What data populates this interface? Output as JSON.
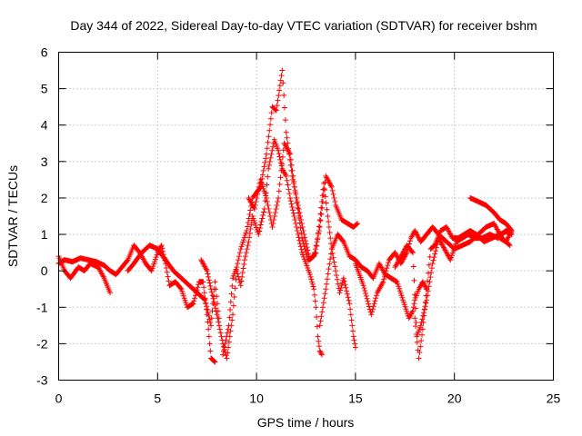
{
  "chart_data": {
    "type": "scatter",
    "title": "Day 344 of 2022, Sidereal Day-to-day VTEC variation (SDTVAR) for receiver bshm",
    "xlabel": "GPS time / hours",
    "ylabel": "SDTVAR / TECUs",
    "xlim": [
      0,
      25
    ],
    "ylim": [
      -3,
      6
    ],
    "xticks": [
      "0",
      "5",
      "10",
      "15",
      "20",
      "25"
    ],
    "yticks": [
      "-3",
      "-2",
      "-1",
      "0",
      "1",
      "2",
      "3",
      "4",
      "5",
      "6"
    ],
    "grid": true,
    "marker": "+",
    "series": [
      {
        "name": "SDTVAR",
        "color": "#ff0000",
        "segments": [
          [
            [
              0.0,
              0.4
            ],
            [
              0.3,
              0.0
            ],
            [
              0.6,
              -0.2
            ],
            [
              1.0,
              0.1
            ],
            [
              1.3,
              0.0
            ],
            [
              1.6,
              0.2
            ],
            [
              2.0,
              0.1
            ],
            [
              2.3,
              -0.2
            ],
            [
              2.6,
              -0.6
            ]
          ],
          [
            [
              0.0,
              0.2
            ],
            [
              0.3,
              0.3
            ],
            [
              0.7,
              0.25
            ],
            [
              1.1,
              0.35
            ],
            [
              1.5,
              0.3
            ],
            [
              1.9,
              0.25
            ],
            [
              2.3,
              0.15
            ],
            [
              2.6,
              0.0
            ],
            [
              2.9,
              -0.1
            ],
            [
              3.2,
              0.1
            ],
            [
              3.5,
              0.3
            ],
            [
              3.8,
              0.7
            ],
            [
              4.1,
              0.5
            ],
            [
              4.4,
              0.2
            ],
            [
              4.7,
              0.0
            ],
            [
              5.0,
              0.5
            ],
            [
              5.2,
              0.7
            ],
            [
              5.4,
              0.2
            ],
            [
              5.6,
              -0.4
            ],
            [
              5.9,
              -0.3
            ],
            [
              6.2,
              -0.5
            ],
            [
              6.5,
              -1.0
            ],
            [
              6.8,
              -0.9
            ],
            [
              7.1,
              -0.3
            ],
            [
              7.3,
              -0.3
            ],
            [
              7.5,
              -1.2
            ],
            [
              7.7,
              -2.4
            ],
            [
              7.9,
              -2.5
            ]
          ],
          [
            [
              3.5,
              0.0
            ],
            [
              3.8,
              0.2
            ],
            [
              4.2,
              0.5
            ],
            [
              4.6,
              0.7
            ],
            [
              5.0,
              0.6
            ],
            [
              5.4,
              0.3
            ],
            [
              5.8,
              0.0
            ],
            [
              6.2,
              -0.2
            ],
            [
              6.6,
              -0.4
            ],
            [
              7.0,
              -0.6
            ],
            [
              7.4,
              -0.8
            ],
            [
              7.7,
              -1.5
            ],
            [
              7.9,
              -0.3
            ],
            [
              8.1,
              -1.3
            ]
          ],
          [
            [
              7.2,
              0.3
            ],
            [
              7.5,
              0.0
            ],
            [
              7.7,
              -0.5
            ],
            [
              8.0,
              -1.2
            ],
            [
              8.3,
              -2.0
            ],
            [
              8.5,
              -2.4
            ],
            [
              8.8,
              -1.2
            ],
            [
              9.0,
              0.0
            ],
            [
              9.2,
              -0.4
            ],
            [
              9.4,
              0.3
            ],
            [
              9.6,
              0.8
            ],
            [
              9.8,
              1.5
            ],
            [
              10.1,
              1.0
            ],
            [
              10.4,
              1.7
            ],
            [
              10.6,
              2.8
            ],
            [
              10.9,
              3.6
            ],
            [
              11.1,
              3.3
            ],
            [
              11.3,
              2.8
            ],
            [
              11.5,
              2.6
            ],
            [
              11.7,
              2.0
            ],
            [
              11.9,
              1.5
            ],
            [
              12.1,
              1.0
            ],
            [
              12.3,
              0.5
            ],
            [
              12.5,
              0.2
            ],
            [
              12.7,
              -0.1
            ],
            [
              12.9,
              -0.5
            ],
            [
              13.0,
              -1.0
            ],
            [
              13.1,
              -1.8
            ],
            [
              13.2,
              -2.2
            ],
            [
              13.3,
              -2.3
            ]
          ],
          [
            [
              8.3,
              -2.3
            ],
            [
              8.6,
              -1.5
            ],
            [
              8.8,
              -0.2
            ],
            [
              9.0,
              0.1
            ],
            [
              9.2,
              0.6
            ],
            [
              9.5,
              1.1
            ],
            [
              9.8,
              2.0
            ],
            [
              10.2,
              2.3
            ],
            [
              10.5,
              3.2
            ],
            [
              10.8,
              4.5
            ],
            [
              11.0,
              4.4
            ],
            [
              11.3,
              5.5
            ],
            [
              11.5,
              3.8
            ],
            [
              11.8,
              2.6
            ],
            [
              12.1,
              1.8
            ],
            [
              12.4,
              1.0
            ],
            [
              12.7,
              0.3
            ],
            [
              13.0,
              0.5
            ],
            [
              13.2,
              1.4
            ],
            [
              13.4,
              2.4
            ],
            [
              13.6,
              1.5
            ],
            [
              13.8,
              0.6
            ],
            [
              14.0,
              0.0
            ],
            [
              14.2,
              -0.6
            ],
            [
              14.4,
              -0.2
            ],
            [
              14.7,
              -0.9
            ],
            [
              14.9,
              -1.8
            ],
            [
              15.0,
              -2.1
            ]
          ],
          [
            [
              9.6,
              2.0
            ],
            [
              9.9,
              1.7
            ],
            [
              10.2,
              2.5
            ],
            [
              10.5,
              2.0
            ],
            [
              10.8,
              1.2
            ],
            [
              11.1,
              2.0
            ],
            [
              11.4,
              3.5
            ],
            [
              11.7,
              3.2
            ],
            [
              12.0,
              2.0
            ],
            [
              12.3,
              0.9
            ],
            [
              12.6,
              0.3
            ],
            [
              12.9,
              0.4
            ],
            [
              13.2,
              1.2
            ],
            [
              13.5,
              2.6
            ],
            [
              13.8,
              2.3
            ],
            [
              14.0,
              1.8
            ],
            [
              14.3,
              1.4
            ],
            [
              14.6,
              1.3
            ],
            [
              14.9,
              1.2
            ],
            [
              15.1,
              1.3
            ]
          ],
          [
            [
              13.2,
              -1.5
            ],
            [
              13.5,
              -0.5
            ],
            [
              13.8,
              0.6
            ],
            [
              14.1,
              1.0
            ],
            [
              14.4,
              0.8
            ],
            [
              14.7,
              0.4
            ],
            [
              15.0,
              0.3
            ],
            [
              15.3,
              0.1
            ],
            [
              15.6,
              0.0
            ],
            [
              15.9,
              -0.2
            ],
            [
              16.2,
              0.2
            ],
            [
              16.5,
              -0.1
            ],
            [
              16.8,
              -0.2
            ],
            [
              17.1,
              -0.3
            ],
            [
              17.4,
              -0.8
            ],
            [
              17.7,
              -1.3
            ],
            [
              17.9,
              -1.1
            ],
            [
              18.0,
              -0.8
            ],
            [
              18.2,
              -0.5
            ],
            [
              18.4,
              -0.3
            ],
            [
              18.6,
              -0.5
            ]
          ],
          [
            [
              15.0,
              0.2
            ],
            [
              15.4,
              -0.4
            ],
            [
              15.8,
              -1.2
            ],
            [
              16.1,
              -0.6
            ],
            [
              16.4,
              -0.3
            ],
            [
              16.7,
              0.3
            ],
            [
              17.0,
              0.5
            ],
            [
              17.3,
              0.2
            ],
            [
              17.6,
              0.5
            ],
            [
              17.8,
              0.9
            ],
            [
              18.0,
              1.1
            ],
            [
              18.3,
              0.8
            ],
            [
              18.6,
              1.0
            ],
            [
              18.9,
              1.2
            ],
            [
              19.2,
              1.0
            ],
            [
              19.6,
              0.8
            ],
            [
              20.0,
              0.6
            ],
            [
              20.4,
              0.7
            ],
            [
              20.8,
              0.8
            ],
            [
              21.2,
              1.0
            ],
            [
              21.6,
              1.2
            ],
            [
              22.0,
              1.3
            ],
            [
              22.4,
              0.9
            ],
            [
              22.8,
              0.7
            ]
          ],
          [
            [
              17.0,
              0.1
            ],
            [
              17.3,
              0.4
            ],
            [
              17.6,
              0.7
            ],
            [
              17.9,
              0.5
            ],
            [
              18.1,
              -1.8
            ],
            [
              18.3,
              -1.5
            ],
            [
              18.6,
              -0.8
            ],
            [
              18.9,
              0.2
            ],
            [
              19.2,
              0.9
            ],
            [
              19.5,
              0.6
            ],
            [
              19.8,
              0.3
            ],
            [
              20.1,
              0.8
            ],
            [
              20.4,
              0.9
            ],
            [
              20.7,
              1.0
            ],
            [
              21.0,
              0.9
            ],
            [
              21.4,
              0.9
            ],
            [
              21.8,
              1.0
            ],
            [
              22.2,
              0.9
            ],
            [
              22.6,
              1.1
            ],
            [
              22.9,
              1.0
            ]
          ],
          [
            [
              18.0,
              -1.3
            ],
            [
              18.2,
              -2.4
            ],
            [
              18.4,
              -1.6
            ],
            [
              18.6,
              -0.5
            ],
            [
              18.8,
              0.6
            ],
            [
              19.0,
              0.7
            ],
            [
              19.3,
              1.1
            ],
            [
              19.6,
              1.2
            ],
            [
              19.9,
              0.9
            ],
            [
              20.2,
              0.9
            ],
            [
              20.5,
              1.0
            ],
            [
              20.8,
              1.1
            ],
            [
              21.1,
              1.0
            ],
            [
              21.5,
              0.8
            ],
            [
              21.9,
              0.9
            ],
            [
              22.3,
              1.0
            ],
            [
              22.7,
              1.1
            ]
          ],
          [
            [
              20.8,
              2.0
            ],
            [
              21.2,
              1.9
            ],
            [
              21.6,
              1.8
            ],
            [
              22.0,
              1.6
            ],
            [
              22.3,
              1.4
            ],
            [
              22.6,
              1.3
            ],
            [
              22.9,
              1.1
            ],
            [
              22.6,
              0.8
            ],
            [
              22.3,
              0.9
            ]
          ]
        ]
      }
    ]
  }
}
